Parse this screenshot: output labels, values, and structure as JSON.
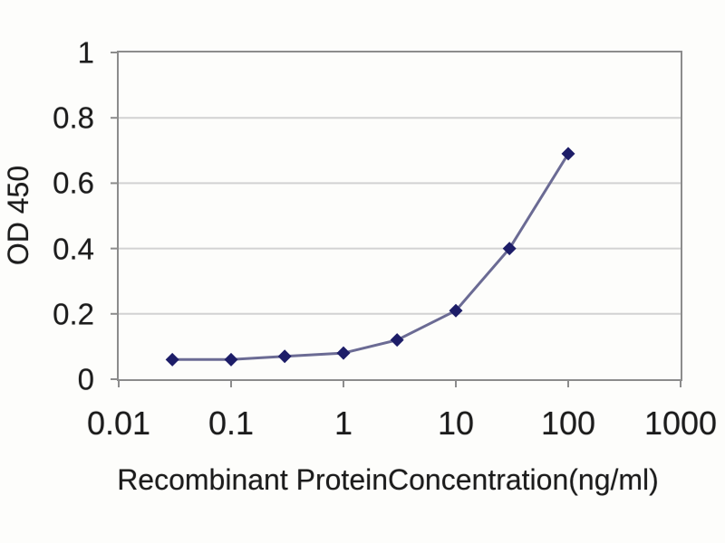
{
  "chart_data": {
    "type": "line",
    "title": "",
    "xlabel": "Recombinant ProteinConcentration(ng/ml)",
    "ylabel": "OD 450",
    "x_scale": "log",
    "xlim": [
      0.01,
      1000
    ],
    "ylim": [
      0,
      1
    ],
    "x_ticks": [
      0.01,
      0.1,
      1,
      10,
      100,
      1000
    ],
    "x_tick_labels": [
      "0.01",
      "0.1",
      "1",
      "10",
      "100",
      "1000"
    ],
    "y_ticks": [
      0,
      0.2,
      0.4,
      0.6,
      0.8,
      1
    ],
    "y_tick_labels": [
      "0",
      "0.2",
      "0.4",
      "0.6",
      "0.8",
      "1"
    ],
    "grid": "horizontal-major-only",
    "legend_position": "none",
    "series": [
      {
        "x": [
          0.03,
          0.1,
          0.3,
          1,
          3,
          10,
          30,
          100
        ],
        "y": [
          0.06,
          0.06,
          0.07,
          0.08,
          0.12,
          0.21,
          0.4,
          0.69
        ],
        "marker": "diamond",
        "marker_size": 15,
        "marker_color": "#1d1d68",
        "line_color": "#6b6b94",
        "line_width": 3
      }
    ],
    "colors": {
      "plot_border": "#8c8c8c",
      "gridline": "#d2d2d2",
      "tick": "#8c8c8c",
      "text": "#1c1c1c",
      "background": "#fdfdfb"
    }
  }
}
